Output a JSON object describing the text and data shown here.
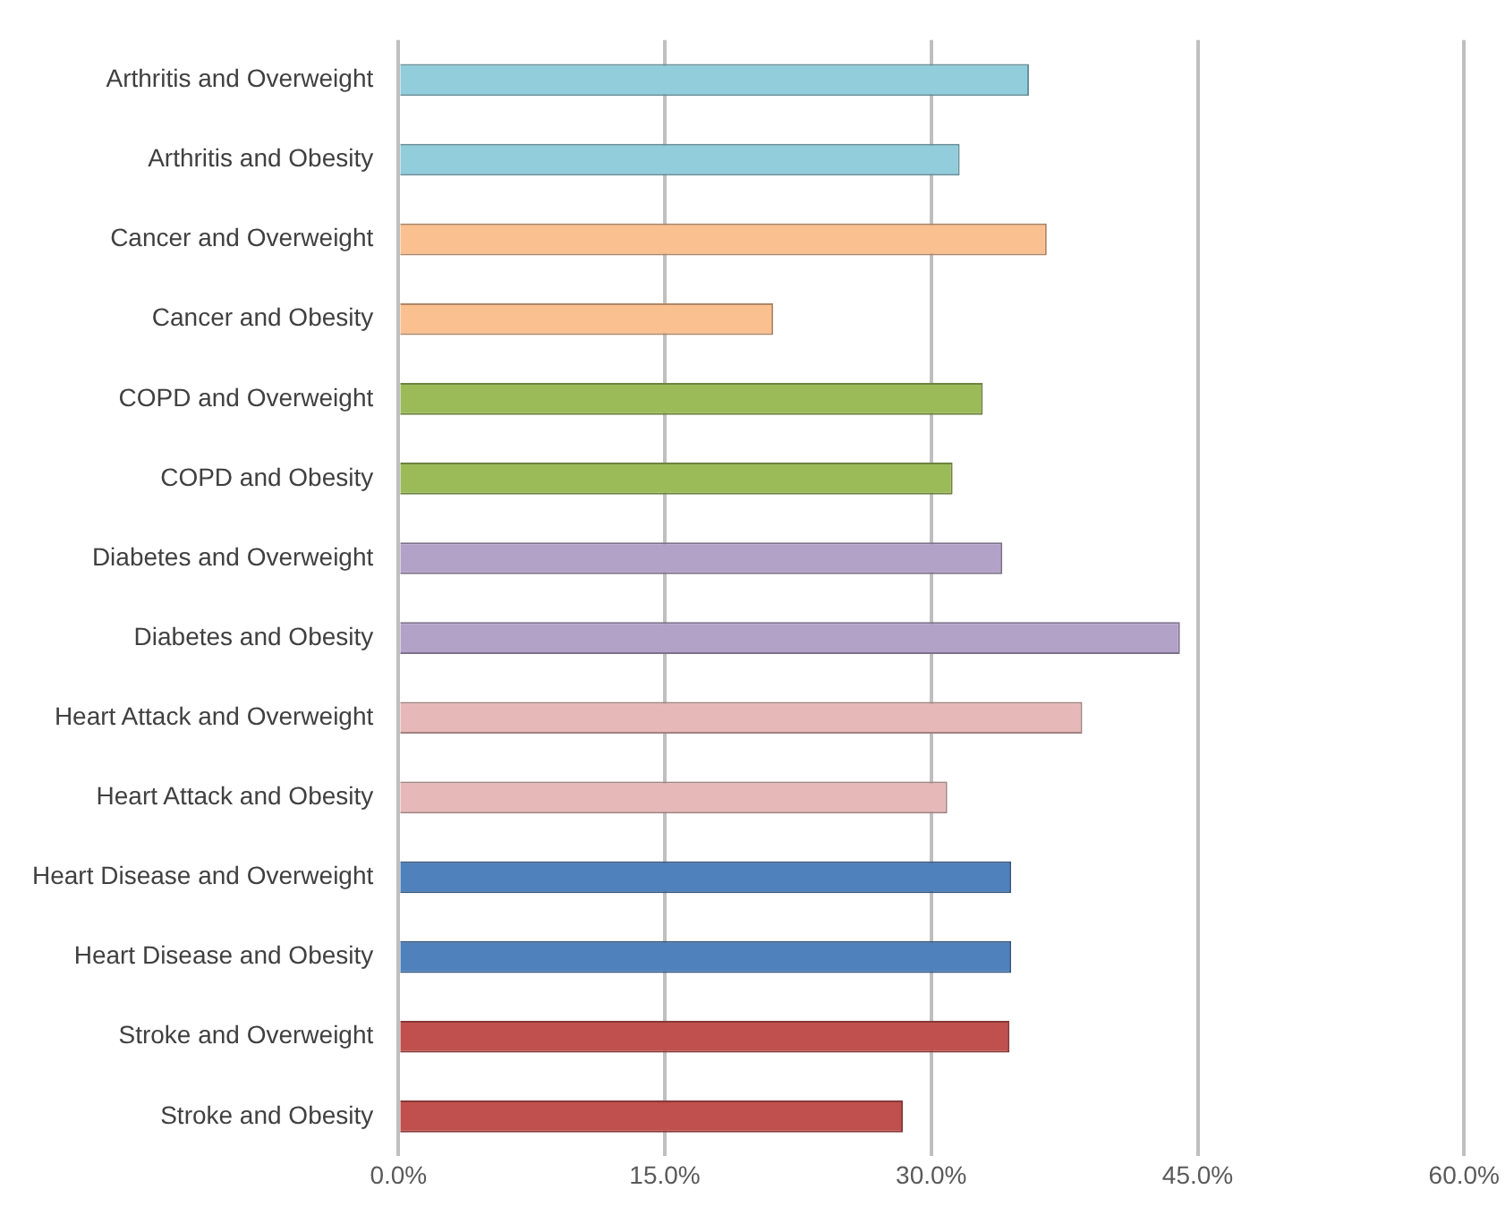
{
  "chart_data": {
    "type": "bar",
    "orientation": "horizontal",
    "categories": [
      "Arthritis and Overweight",
      "Arthritis and Obesity",
      "Cancer and Overweight",
      "Cancer and Obesity",
      "COPD and Overweight",
      "COPD and Obesity",
      "Diabetes and Overweight",
      "Diabetes and Obesity",
      "Heart Attack and Overweight",
      "Heart Attack and Obesity",
      "Heart Disease and Overweight",
      "Heart Disease and Obesity",
      "Stroke and Overweight",
      "Stroke and Obesity"
    ],
    "values": [
      35.5,
      31.6,
      36.5,
      21.1,
      32.9,
      31.2,
      34.0,
      44.0,
      38.5,
      30.9,
      34.5,
      34.5,
      34.4,
      28.4
    ],
    "colors": [
      "#92cddc",
      "#92cddc",
      "#fac090",
      "#fac090",
      "#9bbb59",
      "#9bbb59",
      "#b3a2c7",
      "#b3a2c7",
      "#e6b9b8",
      "#e6b9b8",
      "#4f81bd",
      "#4f81bd",
      "#c0504d",
      "#c0504d"
    ],
    "xlim": [
      0,
      60
    ],
    "xticks": [
      {
        "value": 0,
        "label": "0.0%"
      },
      {
        "value": 15,
        "label": "15.0%"
      },
      {
        "value": 30,
        "label": "30.0%"
      },
      {
        "value": 45,
        "label": "45.0%"
      },
      {
        "value": 60,
        "label": "60.0%"
      }
    ],
    "grid": "x",
    "legend": false
  }
}
